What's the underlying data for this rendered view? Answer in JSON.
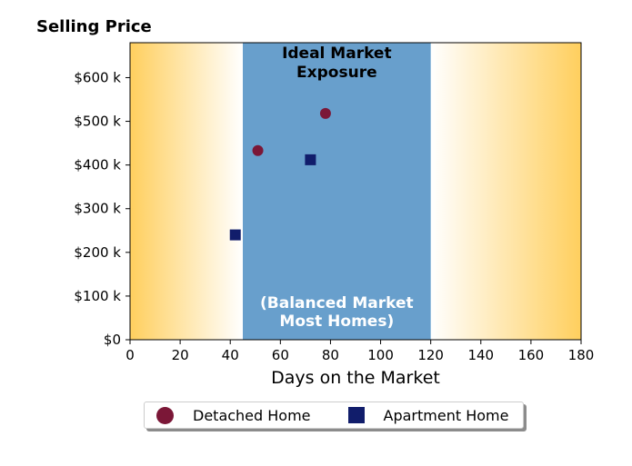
{
  "chart_data": {
    "type": "scatter",
    "title": "Selling Price",
    "xlabel": "Days on the Market",
    "ylabel": "",
    "xlim": [
      0,
      180
    ],
    "ylim": [
      0,
      680000
    ],
    "x_ticks": [
      0,
      20,
      40,
      60,
      80,
      100,
      120,
      140,
      160,
      180
    ],
    "x_tick_labels": [
      "0",
      "20",
      "40",
      "60",
      "80",
      "100",
      "120",
      "140",
      "160",
      "180"
    ],
    "y_ticks": [
      0,
      100000,
      200000,
      300000,
      400000,
      500000,
      600000
    ],
    "y_tick_labels": [
      "$0",
      "$100 k",
      "$200 k",
      "$300 k",
      "$400 k",
      "$500 k",
      "$600 k"
    ],
    "grid": false,
    "legend_position": "bottom-center",
    "band": {
      "x_range": [
        45,
        120
      ],
      "color": "#689fcc",
      "label_top": [
        "Ideal Market",
        "Exposure"
      ],
      "label_bottom": [
        "(Balanced Market",
        "Most Homes)"
      ]
    },
    "background_gradient": {
      "edge_color": "#ffcf5e",
      "center_color": "#ffffff"
    },
    "series": [
      {
        "name": "Detached Home",
        "marker": "circle",
        "color": "#7b1737",
        "points": [
          {
            "x": 51,
            "y": 433000
          },
          {
            "x": 78,
            "y": 518000
          }
        ]
      },
      {
        "name": "Apartment Home",
        "marker": "square",
        "color": "#111d6b",
        "points": [
          {
            "x": 42,
            "y": 240000
          },
          {
            "x": 72,
            "y": 412000
          }
        ]
      }
    ]
  }
}
